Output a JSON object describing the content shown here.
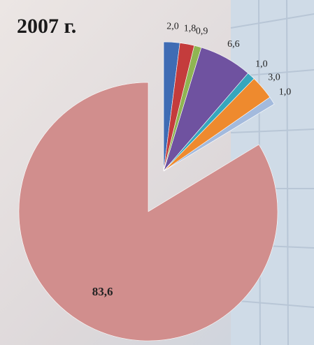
{
  "chart_data": {
    "type": "pie",
    "title": "2007 г.",
    "values": [
      2.0,
      1.8,
      0.9,
      6.6,
      1.0,
      3.0,
      1.0,
      83.6
    ],
    "value_labels": [
      "2,0",
      "1,8",
      "0,9",
      "6,6",
      "1,0",
      "3,0",
      "1,0",
      "83,6"
    ],
    "colors": [
      "#3f6cb4",
      "#c43c3c",
      "#8fb552",
      "#6f52a0",
      "#36a6bd",
      "#ee8a2e",
      "#a3badd",
      "#d18e8d"
    ],
    "exploded": [
      true,
      true,
      true,
      true,
      true,
      true,
      true,
      false
    ]
  }
}
